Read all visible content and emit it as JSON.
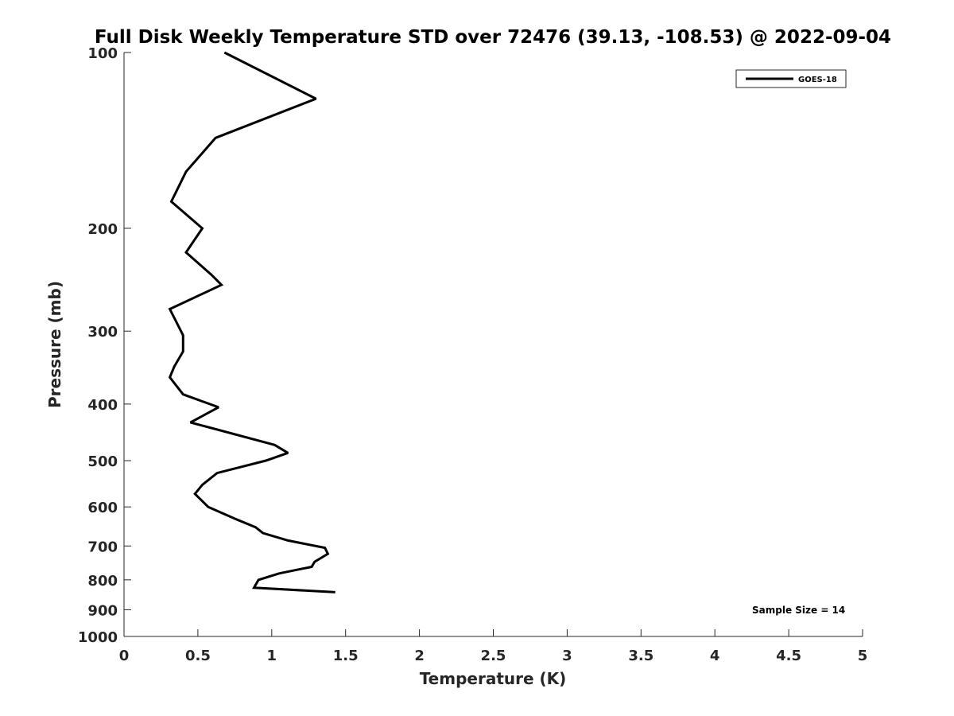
{
  "chart_data": {
    "type": "line",
    "title": "Full Disk Weekly Temperature STD over 72476 (39.13, -108.53) @ 2022-09-04",
    "xlabel": "Temperature (K)",
    "ylabel": "Pressure (mb)",
    "xlim": [
      0,
      5
    ],
    "ylim": [
      100,
      1000
    ],
    "yscale": "log",
    "y_reversed": true,
    "xticks": [
      0,
      0.5,
      1,
      1.5,
      2,
      2.5,
      3,
      3.5,
      4,
      4.5,
      5
    ],
    "xtick_labels": [
      "0",
      "0.5",
      "1",
      "1.5",
      "2",
      "2.5",
      "3",
      "3.5",
      "4",
      "4.5",
      "5"
    ],
    "yticks": [
      100,
      200,
      300,
      400,
      500,
      600,
      700,
      800,
      900,
      1000
    ],
    "ytick_labels": [
      "100",
      "200",
      "300",
      "400",
      "500",
      "600",
      "700",
      "800",
      "900",
      "1000"
    ],
    "grid": false,
    "legend_position": "top-right",
    "series": [
      {
        "name": "GOES-18",
        "color": "#000000",
        "points": [
          [
            0.68,
            100
          ],
          [
            1.3,
            120
          ],
          [
            0.62,
            140
          ],
          [
            0.42,
            160
          ],
          [
            0.32,
            180
          ],
          [
            0.53,
            200
          ],
          [
            0.42,
            220
          ],
          [
            0.59,
            240
          ],
          [
            0.66,
            250
          ],
          [
            0.31,
            275
          ],
          [
            0.4,
            305
          ],
          [
            0.4,
            325
          ],
          [
            0.34,
            345
          ],
          [
            0.31,
            360
          ],
          [
            0.4,
            385
          ],
          [
            0.64,
            405
          ],
          [
            0.45,
            430
          ],
          [
            1.02,
            470
          ],
          [
            1.11,
            485
          ],
          [
            0.96,
            500
          ],
          [
            0.63,
            525
          ],
          [
            0.53,
            550
          ],
          [
            0.48,
            570
          ],
          [
            0.57,
            600
          ],
          [
            0.76,
            630
          ],
          [
            0.89,
            650
          ],
          [
            0.94,
            665
          ],
          [
            1.11,
            685
          ],
          [
            1.36,
            705
          ],
          [
            1.38,
            722
          ],
          [
            1.29,
            745
          ],
          [
            1.27,
            760
          ],
          [
            1.05,
            780
          ],
          [
            0.91,
            800
          ],
          [
            0.88,
            825
          ],
          [
            1.43,
            840
          ]
        ]
      }
    ],
    "annotations": [
      "Sample Size = 14"
    ]
  }
}
